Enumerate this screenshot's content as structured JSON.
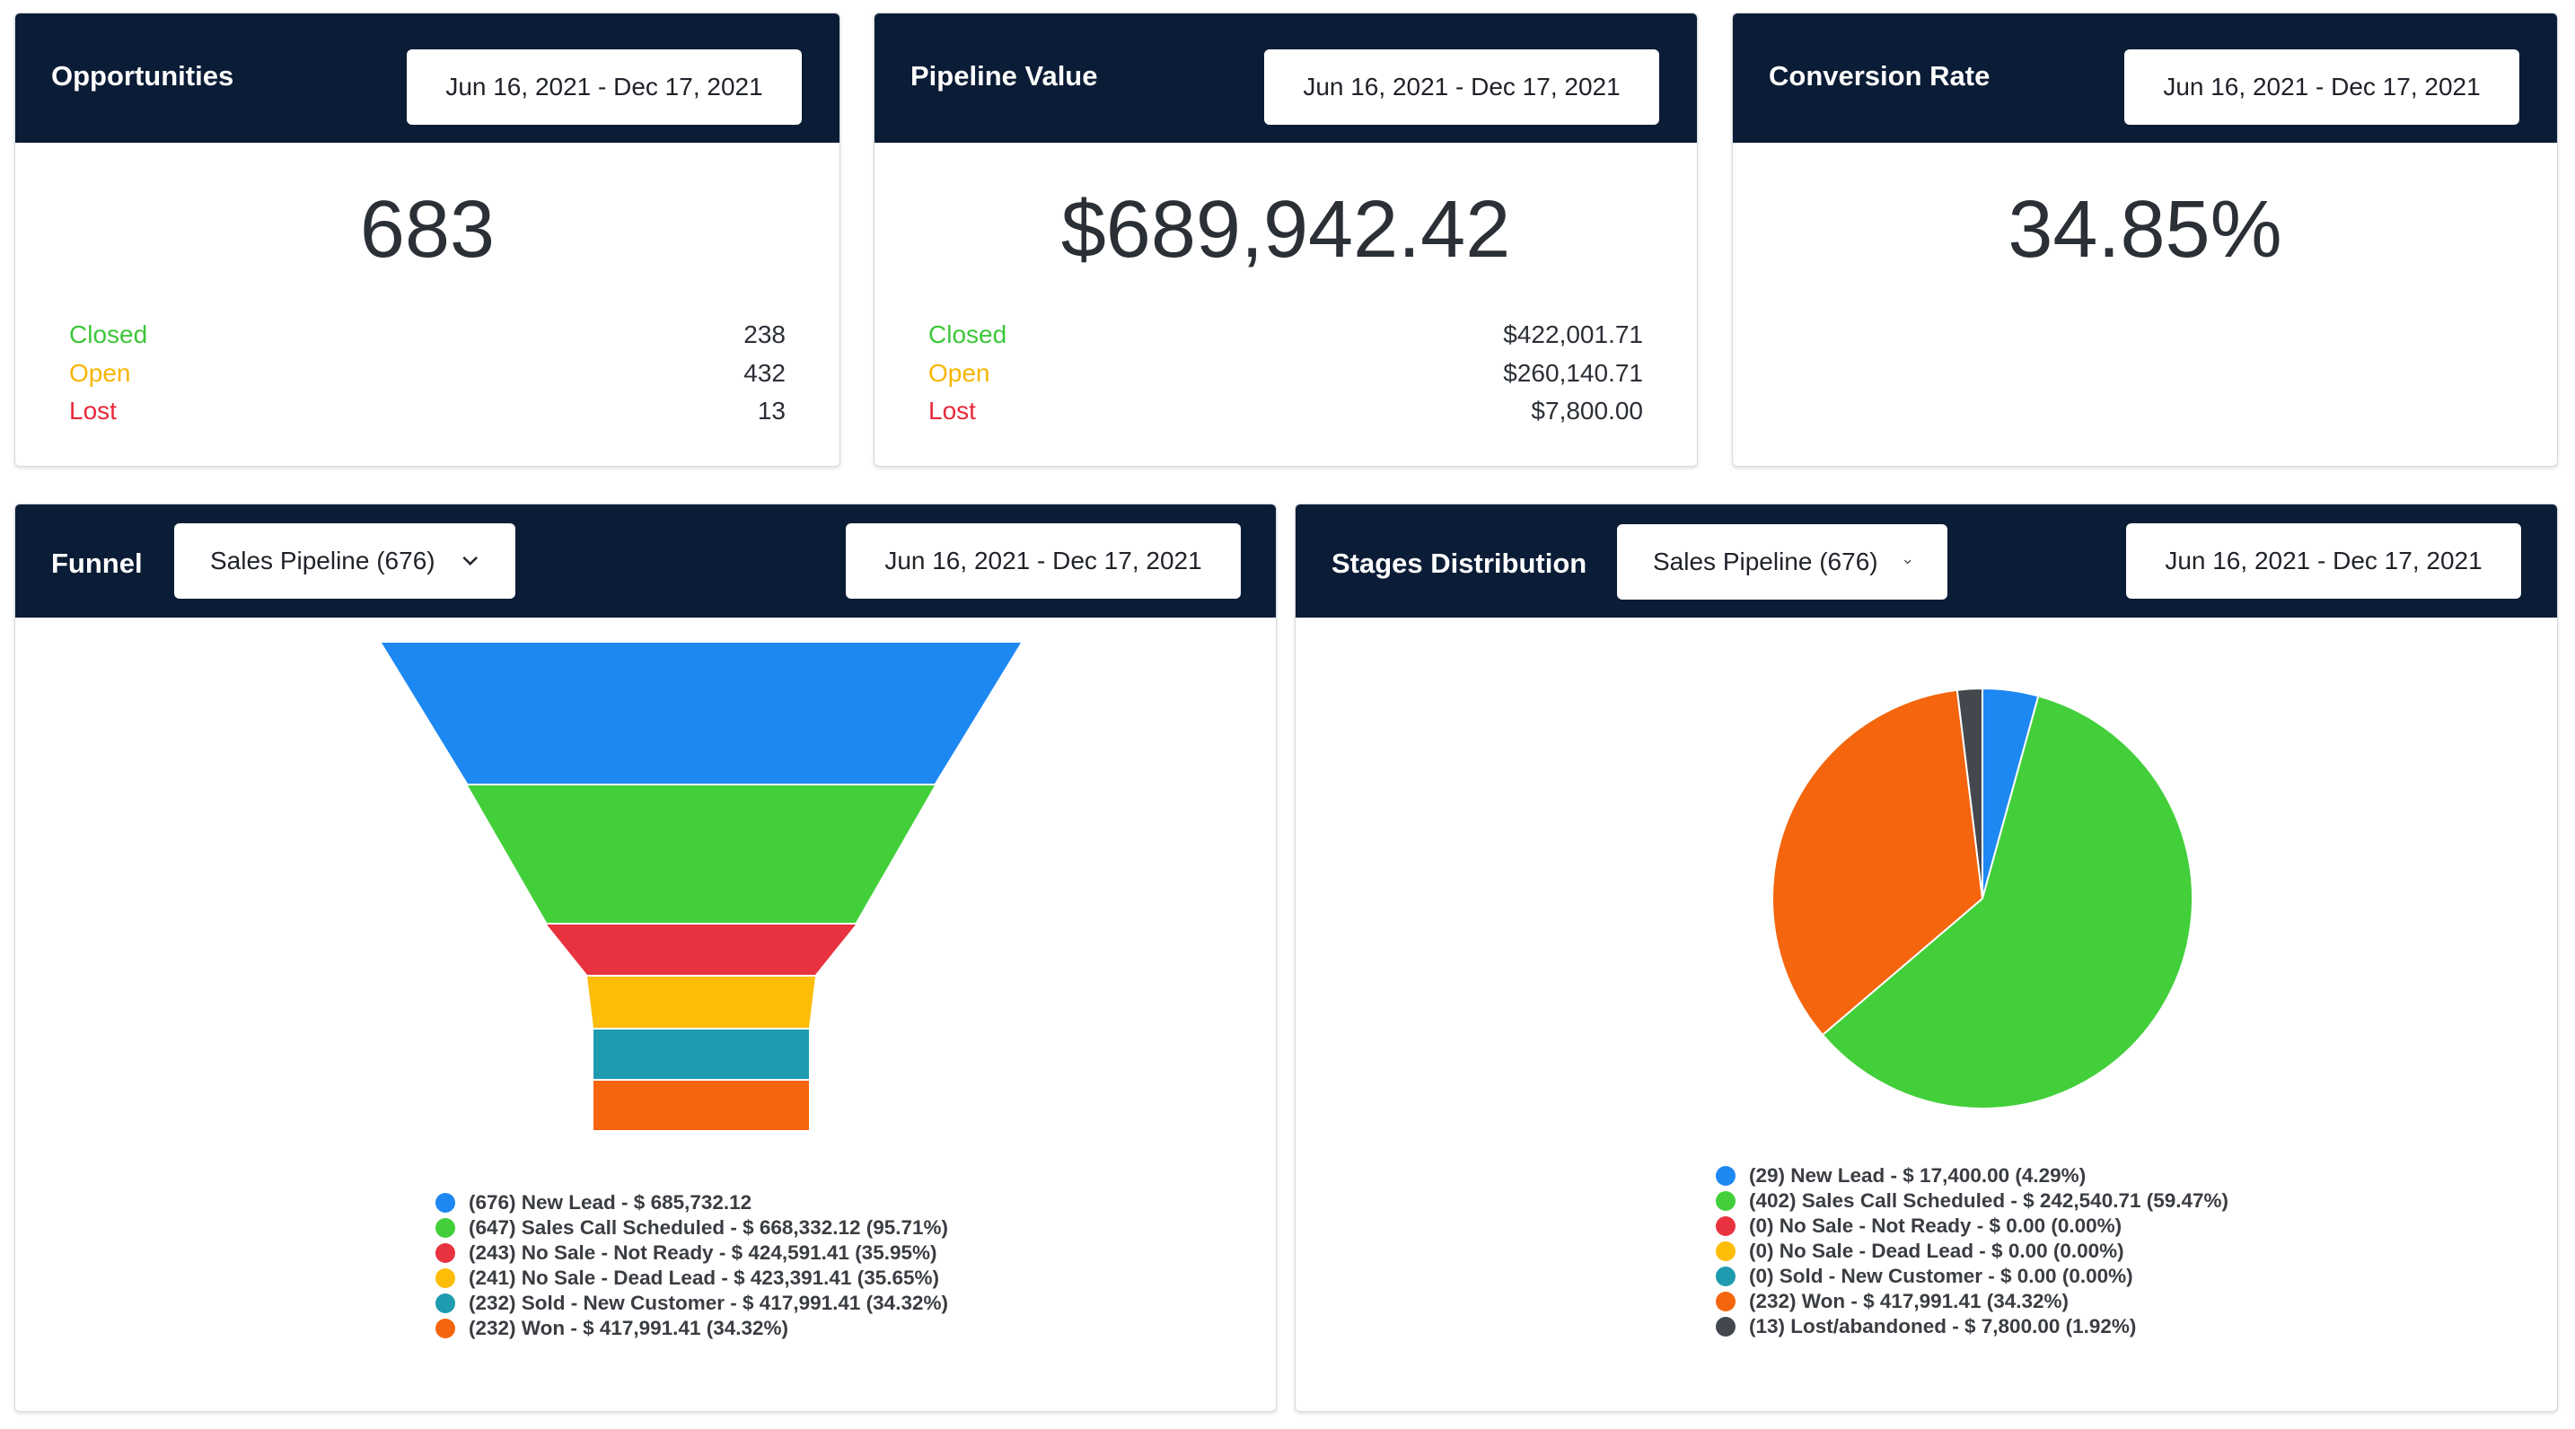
{
  "date_range": "Jun 16, 2021 - Dec 17, 2021",
  "colors": {
    "header_bg": "#0b1c36",
    "closed": "#3ec63a",
    "open": "#f7b500",
    "lost": "#e8293a",
    "blue": "#1e88f2",
    "green": "#43cf3a",
    "red": "#e8323f",
    "yellow": "#fbbd08",
    "teal": "#1f9bb0",
    "orange": "#f4650d",
    "dark": "#43484e"
  },
  "opportunities": {
    "title": "Opportunities",
    "value": "683",
    "closed_label": "Closed",
    "closed_value": "238",
    "open_label": "Open",
    "open_value": "432",
    "lost_label": "Lost",
    "lost_value": "13"
  },
  "pipeline": {
    "title": "Pipeline Value",
    "value": "$689,942.42",
    "closed_label": "Closed",
    "closed_value": "$422,001.71",
    "open_label": "Open",
    "open_value": "$260,140.71",
    "lost_label": "Lost",
    "lost_value": "$7,800.00"
  },
  "conversion": {
    "title": "Conversion Rate",
    "value": "34.85%"
  },
  "funnel": {
    "title": "Funnel",
    "select_label": "Sales Pipeline (676)",
    "legend": [
      {
        "text": "(676) New Lead - $ 685,732.12",
        "color": "#1e88f2"
      },
      {
        "text": "(647) Sales Call Scheduled - $ 668,332.12 (95.71%)",
        "color": "#43cf3a"
      },
      {
        "text": "(243) No Sale - Not Ready - $ 424,591.41 (35.95%)",
        "color": "#e8323f"
      },
      {
        "text": "(241) No Sale - Dead Lead - $ 423,391.41 (35.65%)",
        "color": "#fbbd08"
      },
      {
        "text": "(232) Sold - New Customer - $ 417,991.41 (34.32%)",
        "color": "#1f9bb0"
      },
      {
        "text": "(232) Won - $ 417,991.41 (34.32%)",
        "color": "#f4650d"
      }
    ]
  },
  "stages": {
    "title": "Stages Distribution",
    "select_label": "Sales Pipeline (676)",
    "legend": [
      {
        "text": "(29) New Lead - $ 17,400.00 (4.29%)",
        "color": "#1e88f2"
      },
      {
        "text": "(402) Sales Call Scheduled - $ 242,540.71 (59.47%)",
        "color": "#43cf3a"
      },
      {
        "text": "(0) No Sale - Not Ready - $ 0.00 (0.00%)",
        "color": "#e8323f"
      },
      {
        "text": "(0) No Sale - Dead Lead - $ 0.00 (0.00%)",
        "color": "#fbbd08"
      },
      {
        "text": "(0) Sold - New Customer - $ 0.00 (0.00%)",
        "color": "#1f9bb0"
      },
      {
        "text": "(232) Won - $ 417,991.41 (34.32%)",
        "color": "#f4650d"
      },
      {
        "text": "(13) Lost/abandoned - $ 7,800.00 (1.92%)",
        "color": "#43484e"
      }
    ]
  },
  "chart_data": [
    {
      "type": "bar",
      "categories": [
        "New Lead",
        "Sales Call Scheduled",
        "No Sale - Not Ready",
        "No Sale - Dead Lead",
        "Sold - New Customer",
        "Won"
      ],
      "counts": [
        676,
        647,
        243,
        241,
        232,
        232
      ],
      "values": [
        685732.12,
        668332.12,
        424591.41,
        423391.41,
        417991.41,
        417991.41
      ],
      "percent": [
        100,
        95.71,
        35.95,
        35.65,
        34.32,
        34.32
      ],
      "colors": [
        "#1e88f2",
        "#43cf3a",
        "#e8323f",
        "#fbbd08",
        "#1f9bb0",
        "#f4650d"
      ]
    },
    {
      "type": "pie",
      "categories": [
        "New Lead",
        "Sales Call Scheduled",
        "No Sale - Not Ready",
        "No Sale - Dead Lead",
        "Sold - New Customer",
        "Won",
        "Lost/abandoned"
      ],
      "counts": [
        29,
        402,
        0,
        0,
        0,
        232,
        13
      ],
      "values": [
        17400.0,
        242540.71,
        0,
        0,
        0,
        417991.41,
        7800.0
      ],
      "percent": [
        4.29,
        59.47,
        0,
        0,
        0,
        34.32,
        1.92
      ],
      "colors": [
        "#1e88f2",
        "#43cf3a",
        "#e8323f",
        "#fbbd08",
        "#1f9bb0",
        "#f4650d",
        "#43484e"
      ]
    }
  ]
}
